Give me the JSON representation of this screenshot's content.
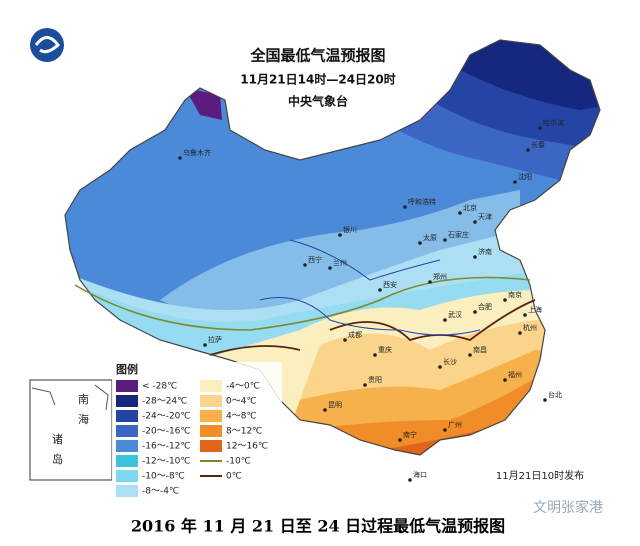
{
  "header": {
    "title": "全国最低气温预报图",
    "period": "11月21日14时—24日20时",
    "issuer": "中央气象台"
  },
  "legend": {
    "title": "图例",
    "items": [
      {
        "label": "< -28℃",
        "color": "#5a1c7e"
      },
      {
        "label": "-28～24℃",
        "color": "#15277e"
      },
      {
        "label": "-24～-20℃",
        "color": "#2545a6"
      },
      {
        "label": "-20～-16℃",
        "color": "#3c66c4"
      },
      {
        "label": "-16～-12℃",
        "color": "#4b8ad8"
      },
      {
        "label": "-12～-10℃",
        "color": "#3bc3dc"
      },
      {
        "label": "-10～-8℃",
        "color": "#7dd7ef"
      },
      {
        "label": "-8～-4℃",
        "color": "#acdff3"
      },
      {
        "label": "-4～0℃",
        "color": "#fbefc0"
      },
      {
        "label": "0～4℃",
        "color": "#f9d48a"
      },
      {
        "label": "4～8℃",
        "color": "#f6b04c"
      },
      {
        "label": "8～12℃",
        "color": "#f18d28"
      },
      {
        "label": "12～16℃",
        "color": "#e0651a"
      },
      {
        "label": "-10℃",
        "color": "#7c8a2c",
        "line": true
      },
      {
        "label": "0℃",
        "color": "#5b2410",
        "line": true
      }
    ]
  },
  "inset": {
    "label": "南海诸岛"
  },
  "cities": [
    "乌鲁木齐",
    "哈尔滨",
    "长春",
    "沈阳",
    "呼和浩特",
    "北京",
    "天津",
    "石家庄",
    "太原",
    "银川",
    "济南",
    "西宁",
    "兰州",
    "西安",
    "郑州",
    "拉萨",
    "成都",
    "重庆",
    "武汉",
    "合肥",
    "南京",
    "上海",
    "杭州",
    "长沙",
    "南昌",
    "贵阳",
    "福州",
    "昆明",
    "南宁",
    "广州",
    "台北",
    "海口"
  ],
  "issue_time": "11月21日10时发布",
  "watermark": "文明张家港",
  "caption": "2016 年 11 月 21 日至 24 日过程最低气温预报图"
}
